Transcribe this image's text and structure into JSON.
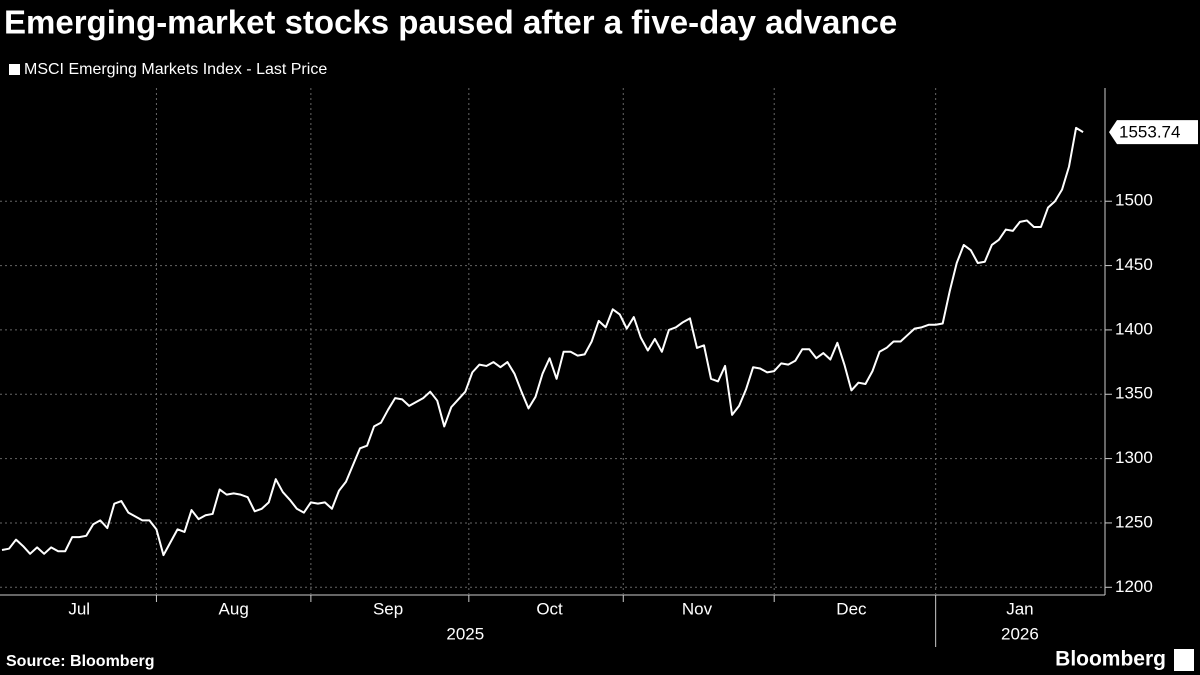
{
  "chart_data": {
    "type": "line",
    "title": "Emerging-market stocks paused after a five-day advance",
    "source": "Source: Bloomberg",
    "brand": "Bloomberg",
    "categories": [
      null,
      null,
      null,
      null,
      null,
      null,
      null,
      null,
      null,
      null,
      null,
      "Jul",
      null,
      null,
      null,
      null,
      null,
      null,
      null,
      null,
      null,
      null,
      null,
      null,
      null,
      null,
      null,
      null,
      null,
      null,
      null,
      null,
      null,
      "Aug",
      null,
      null,
      null,
      null,
      null,
      null,
      null,
      null,
      null,
      null,
      null,
      null,
      null,
      null,
      null,
      null,
      null,
      null,
      null,
      null,
      null,
      "Sep",
      null,
      null,
      null,
      null,
      null,
      null,
      null,
      null,
      null,
      null,
      null,
      null,
      null,
      null,
      null,
      null,
      null,
      null,
      null,
      null,
      null,
      null,
      "Oct",
      null,
      null,
      null,
      null,
      null,
      null,
      null,
      null,
      null,
      null,
      null,
      null,
      null,
      null,
      null,
      null,
      null,
      null,
      null,
      null,
      "Nov",
      null,
      null,
      null,
      null,
      null,
      null,
      null,
      null,
      null,
      null,
      null,
      null,
      null,
      null,
      null,
      null,
      null,
      null,
      null,
      null,
      null,
      "Dec",
      null,
      null,
      null,
      null,
      null,
      null,
      null,
      null,
      null,
      null,
      null,
      null,
      null,
      null,
      null,
      null,
      null,
      null,
      null,
      null,
      null,
      null,
      null,
      "Jan",
      null,
      null,
      null,
      null,
      null,
      null,
      null,
      null,
      null
    ],
    "year_categories": [
      null,
      null,
      null,
      null,
      null,
      null,
      null,
      null,
      null,
      null,
      null,
      null,
      null,
      null,
      null,
      null,
      null,
      null,
      null,
      null,
      null,
      null,
      null,
      null,
      null,
      null,
      null,
      null,
      null,
      null,
      null,
      null,
      null,
      null,
      null,
      null,
      null,
      null,
      null,
      null,
      null,
      null,
      null,
      null,
      null,
      null,
      null,
      null,
      null,
      null,
      null,
      null,
      null,
      null,
      null,
      null,
      null,
      null,
      null,
      null,
      null,
      null,
      null,
      null,
      null,
      null,
      "2025",
      null,
      null,
      null,
      null,
      null,
      null,
      null,
      null,
      null,
      null,
      null,
      null,
      null,
      null,
      null,
      null,
      null,
      null,
      null,
      null,
      null,
      null,
      null,
      null,
      null,
      null,
      null,
      null,
      null,
      null,
      null,
      null,
      null,
      null,
      null,
      null,
      null,
      null,
      null,
      null,
      null,
      null,
      null,
      null,
      null,
      null,
      null,
      null,
      null,
      null,
      null,
      null,
      null,
      null,
      null,
      null,
      null,
      null,
      null,
      null,
      null,
      null,
      null,
      null,
      null,
      null,
      null,
      null,
      null,
      null,
      null,
      null,
      null,
      null,
      null,
      null,
      null,
      null,
      "2026",
      null,
      null,
      null,
      null,
      null,
      null,
      null,
      null,
      null
    ],
    "series": [
      {
        "name": "MSCI Emerging Markets Index - Last Price",
        "color": "#ffffff",
        "values": [
          1229,
          1230,
          1237,
          1232,
          1226,
          1231,
          1226,
          1231,
          1228,
          1228,
          1239,
          1239,
          1240,
          1249,
          1252,
          1246,
          1265,
          1267,
          1258,
          1255,
          1252,
          1252,
          1245,
          1225,
          1235,
          1245,
          1243,
          1260,
          1253,
          1256,
          1257,
          1276,
          1272,
          1273,
          1272,
          1270,
          1259,
          1261,
          1266,
          1284,
          1274,
          1268,
          1261,
          1258,
          1266,
          1265,
          1266,
          1261,
          1275,
          1282,
          1295,
          1308,
          1310,
          1325,
          1328,
          1338,
          1347,
          1346,
          1341,
          1344,
          1347,
          1352,
          1345,
          1325,
          1340,
          1346,
          1352,
          1367,
          1373,
          1372,
          1375,
          1371,
          1375,
          1366,
          1352,
          1339,
          1348,
          1366,
          1378,
          1362,
          1383,
          1383,
          1380,
          1381,
          1391,
          1407,
          1402,
          1416,
          1412,
          1401,
          1410,
          1394,
          1384,
          1393,
          1383,
          1400,
          1402,
          1406,
          1409,
          1386,
          1388,
          1362,
          1360,
          1372,
          1334,
          1341,
          1354,
          1371,
          1370,
          1367,
          1368,
          1374,
          1373,
          1376,
          1385,
          1385,
          1378,
          1382,
          1377,
          1390,
          1373,
          1353,
          1359,
          1358,
          1368,
          1383,
          1386,
          1391,
          1391,
          1396,
          1401,
          1402,
          1404,
          1404,
          1405,
          1430,
          1452,
          1466,
          1462,
          1452,
          1453,
          1466,
          1470,
          1478,
          1477,
          1484,
          1485,
          1480,
          1480,
          1495,
          1500,
          1509,
          1527,
          1557,
          1553.74
        ]
      }
    ],
    "ylim": [
      1194,
      1588
    ],
    "yticks": [
      1200,
      1250,
      1300,
      1350,
      1400,
      1450,
      1500
    ],
    "grid": true
  }
}
